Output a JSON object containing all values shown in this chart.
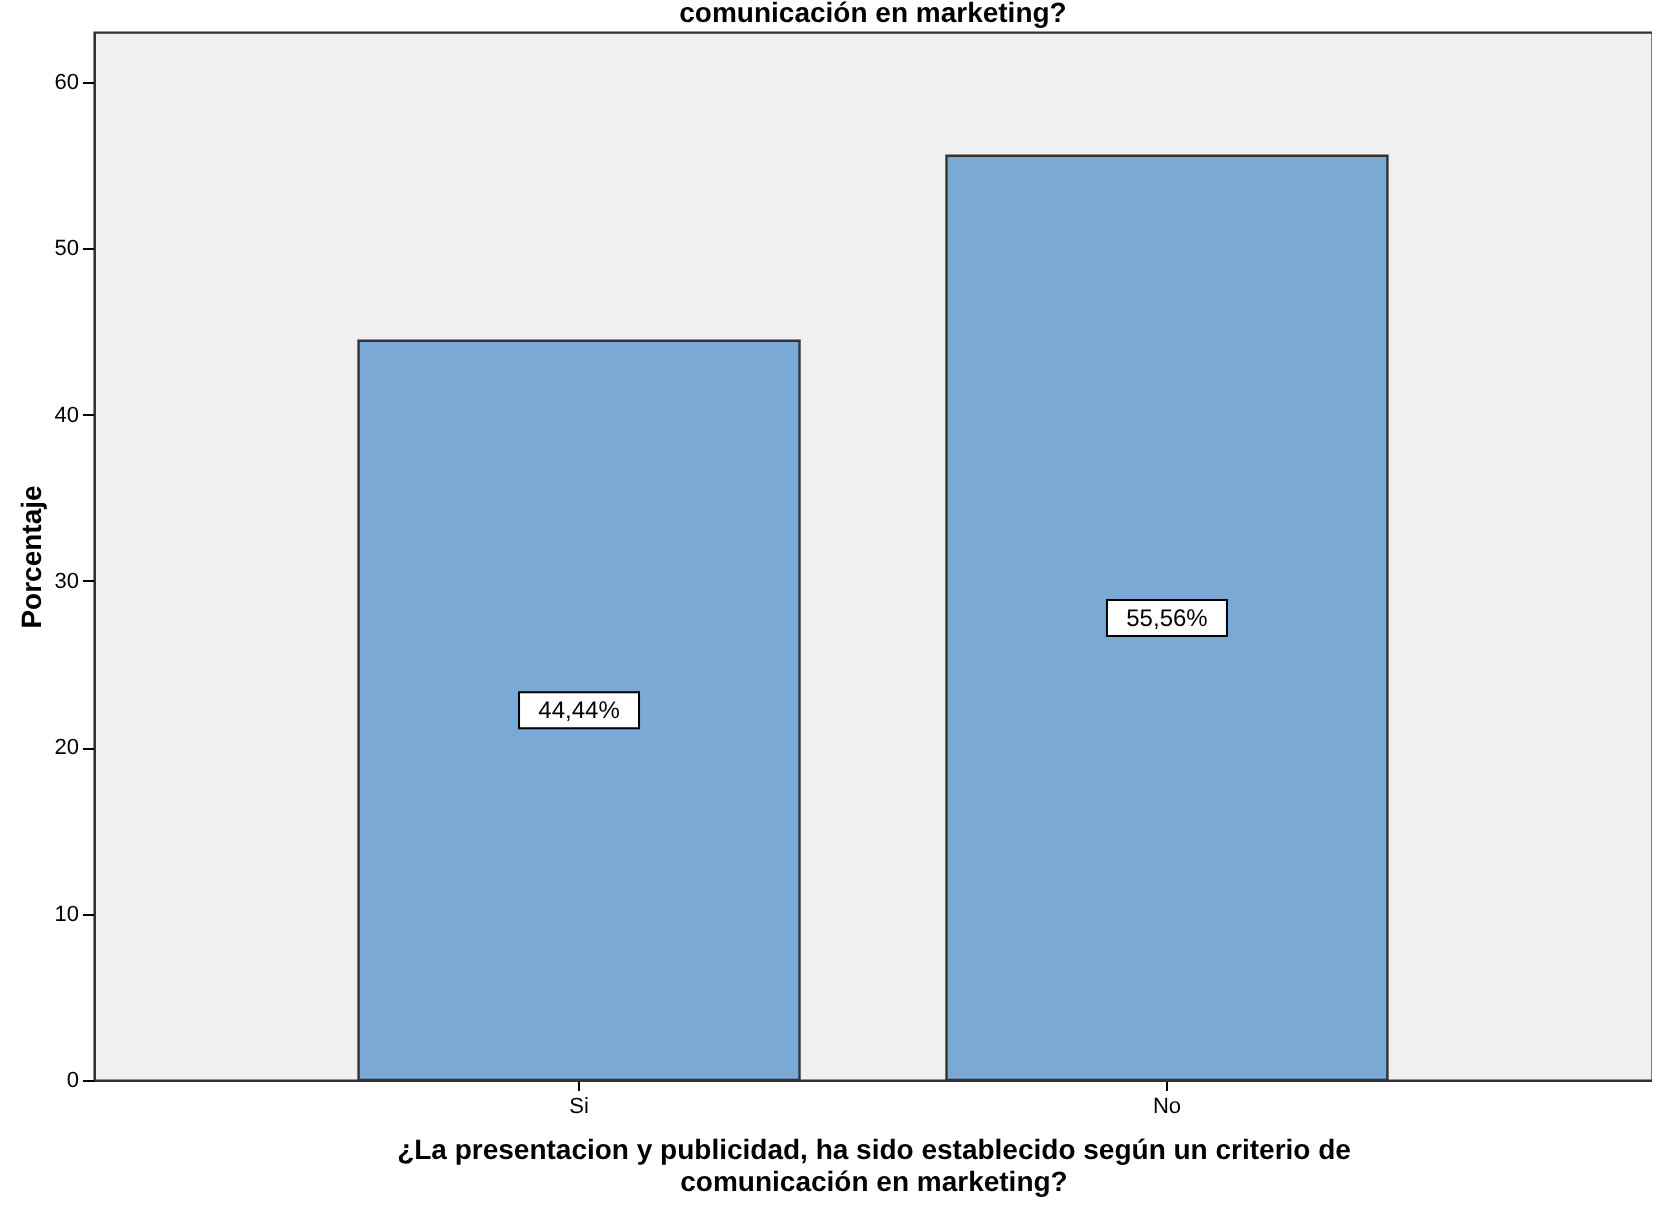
{
  "chart_data": {
    "type": "bar",
    "title": "comunicación en marketing?",
    "xlabel": "¿La presentacion  y publicidad, ha sido establecido según un criterio de comunicación en marketing?",
    "ylabel": "Porcentaje",
    "categories": [
      "Si",
      "No"
    ],
    "values": [
      44.44,
      55.56
    ],
    "color": "#7aa9d6",
    "value_labels": [
      "44,44%",
      "55,56%"
    ],
    "ylim": [
      0,
      63
    ],
    "yticks": [
      0,
      10,
      20,
      30,
      40,
      50,
      60
    ],
    "grid": false
  }
}
